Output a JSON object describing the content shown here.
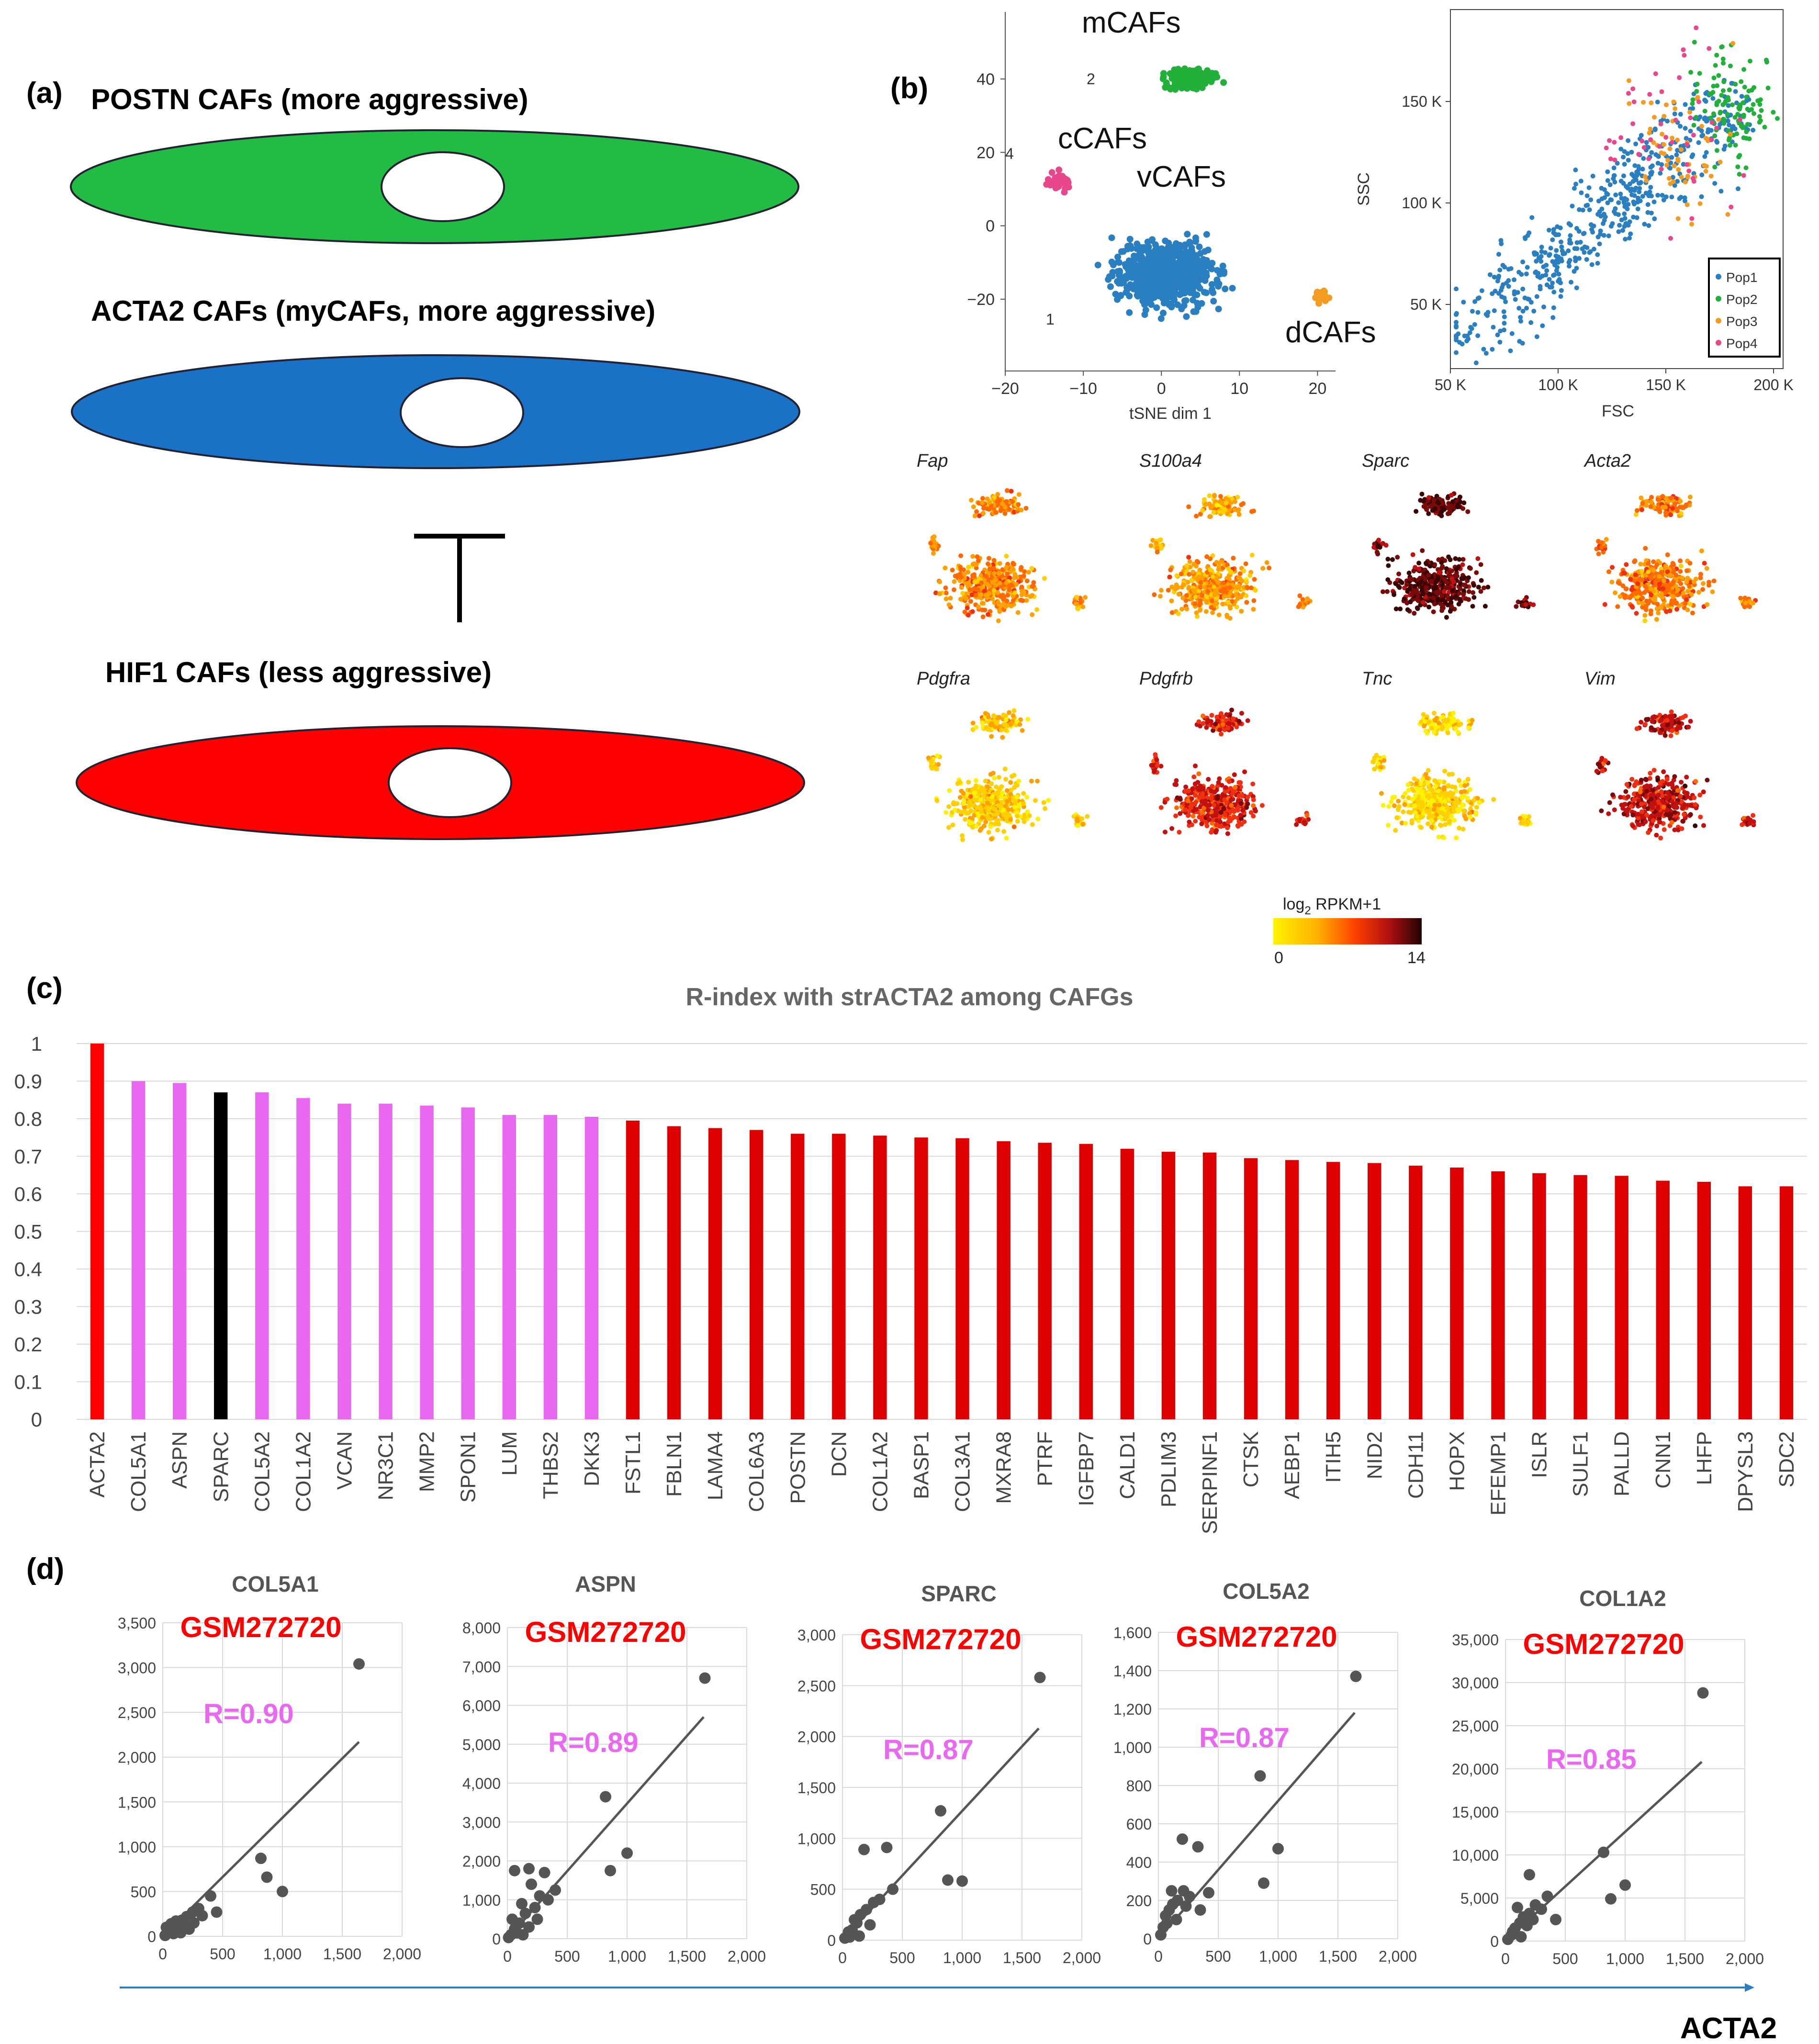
{
  "panel_a": {
    "label": "(a)",
    "cells": [
      {
        "title": "POSTN CAFs (more aggressive)",
        "color": "#22bb44"
      },
      {
        "title": "ACTA2 CAFs (myCAFs, more aggressive)",
        "color": "#1a72c7"
      },
      {
        "title": "HIF1 CAFs (less aggressive)",
        "color": "#ff0000"
      }
    ]
  },
  "panel_b": {
    "label": "(b)",
    "tsne": {
      "xlabel": "tSNE dim 1",
      "xticks": [
        -20,
        -10,
        0,
        10,
        20
      ],
      "yticks": [
        40,
        20,
        0,
        -20
      ],
      "clusters": [
        {
          "name": "mCAFs",
          "num": "2",
          "color": "#22b03a"
        },
        {
          "name": "cCAFs",
          "num": "4",
          "color": "#e8478b"
        },
        {
          "name": "vCAFs",
          "num": "1",
          "color": "#2a7fc0"
        },
        {
          "name": "dCAFs",
          "num": "",
          "color": "#f39c21"
        }
      ]
    },
    "fsc": {
      "xlabel": "FSC",
      "ylabel": "SSC",
      "xticks": [
        "50 K",
        "100 K",
        "150 K",
        "200 K"
      ],
      "yticks": [
        "150 K",
        "100 K",
        "50 K"
      ],
      "legend": [
        "Pop1",
        "Pop2",
        "Pop3",
        "Pop4"
      ],
      "legend_colors": [
        "#2a7fc0",
        "#22b03a",
        "#f39c21",
        "#e8478b"
      ]
    },
    "genes": [
      "Fap",
      "S100a4",
      "Sparc",
      "Acta2",
      "Pdgfra",
      "Pdgfrb",
      "Tnc",
      "Vim"
    ],
    "gene_levels": [
      0.35,
      0.3,
      0.92,
      0.4,
      0.15,
      0.62,
      0.12,
      0.7
    ],
    "colorbar": {
      "title": "log",
      "sub": "2",
      "suffix": " RPKM+1",
      "min": "0",
      "max": "14"
    }
  },
  "panel_c": {
    "label": "(c)"
  },
  "chart_data": [
    {
      "type": "bar",
      "title": "R-index with strACTA2 among CAFGs",
      "ylim": [
        0,
        1
      ],
      "yticks": [
        "0",
        "0.1",
        "0.2",
        "0.3",
        "0.4",
        "0.5",
        "0.6",
        "0.7",
        "0.8",
        "0.9",
        "1"
      ],
      "categories": [
        "ACTA2",
        "COL5A1",
        "ASPN",
        "SPARC",
        "COL5A2",
        "COL1A2",
        "VCAN",
        "NR3C1",
        "MMP2",
        "SPON1",
        "LUM",
        "THBS2",
        "DKK3",
        "FSTL1",
        "FBLN1",
        "LAMA4",
        "COL6A3",
        "POSTN",
        "DCN",
        "COL1A2",
        "BASP1",
        "COL3A1",
        "MXRA8",
        "PTRF",
        "IGFBP7",
        "CALD1",
        "PDLIM3",
        "SERPINF1",
        "CTSK",
        "AEBP1",
        "ITIH5",
        "NID2",
        "CDH11",
        "HOPX",
        "EFEMP1",
        "ISLR",
        "SULF1",
        "PALLD",
        "CNN1",
        "LHFP",
        "DPYSL3",
        "SDC2"
      ],
      "values": [
        1.0,
        0.9,
        0.895,
        0.87,
        0.87,
        0.855,
        0.84,
        0.84,
        0.835,
        0.83,
        0.81,
        0.81,
        0.805,
        0.795,
        0.78,
        0.775,
        0.77,
        0.76,
        0.76,
        0.755,
        0.75,
        0.748,
        0.74,
        0.736,
        0.733,
        0.72,
        0.712,
        0.71,
        0.695,
        0.69,
        0.685,
        0.682,
        0.675,
        0.67,
        0.66,
        0.655,
        0.65,
        0.648,
        0.635,
        0.632,
        0.62,
        0.62
      ],
      "colors": [
        "#ff0000",
        "#e868f0",
        "#e868f0",
        "#000000",
        "#e868f0",
        "#e868f0",
        "#e868f0",
        "#e868f0",
        "#e868f0",
        "#e868f0",
        "#e868f0",
        "#e868f0",
        "#e868f0",
        "#dd0000",
        "#dd0000",
        "#dd0000",
        "#dd0000",
        "#dd0000",
        "#dd0000",
        "#dd0000",
        "#dd0000",
        "#dd0000",
        "#dd0000",
        "#dd0000",
        "#dd0000",
        "#dd0000",
        "#dd0000",
        "#dd0000",
        "#dd0000",
        "#dd0000",
        "#dd0000",
        "#dd0000",
        "#dd0000",
        "#dd0000",
        "#dd0000",
        "#dd0000",
        "#dd0000",
        "#dd0000",
        "#dd0000",
        "#dd0000",
        "#dd0000",
        "#dd0000"
      ]
    },
    {
      "type": "scatter",
      "title": "COL5A1",
      "dataset": "GSM272720",
      "r_label": "R=0.90",
      "xlim": [
        0,
        2000
      ],
      "ylim": [
        0,
        3500
      ],
      "xticks": [
        "0",
        "500",
        "1,000",
        "1,500",
        "2,000"
      ],
      "yticks": [
        "0",
        "500",
        "1,000",
        "1,500",
        "2,000",
        "2,500",
        "3,000",
        "3,500"
      ],
      "points": [
        [
          1640,
          3040
        ],
        [
          820,
          870
        ],
        [
          870,
          660
        ],
        [
          1000,
          500
        ],
        [
          400,
          450
        ],
        [
          450,
          270
        ],
        [
          330,
          230
        ],
        [
          300,
          310
        ],
        [
          250,
          270
        ],
        [
          200,
          220
        ],
        [
          160,
          180
        ],
        [
          130,
          150
        ],
        [
          100,
          120
        ],
        [
          80,
          80
        ],
        [
          60,
          50
        ],
        [
          40,
          40
        ],
        [
          20,
          10
        ],
        [
          120,
          60
        ],
        [
          180,
          110
        ],
        [
          220,
          80
        ],
        [
          260,
          150
        ],
        [
          90,
          30
        ],
        [
          150,
          40
        ],
        [
          30,
          100
        ],
        [
          110,
          170
        ],
        [
          70,
          140
        ]
      ],
      "fit": [
        [
          0,
          0
        ],
        [
          1640,
          2170
        ]
      ]
    },
    {
      "type": "scatter",
      "title": "ASPN",
      "dataset": "GSM272720",
      "r_label": "R=0.89",
      "xlim": [
        0,
        2000
      ],
      "ylim": [
        0,
        8000
      ],
      "xticks": [
        "0",
        "500",
        "1,000",
        "1,500",
        "2,000"
      ],
      "yticks": [
        "0",
        "1,000",
        "2,000",
        "3,000",
        "4,000",
        "5,000",
        "6,000",
        "7,000",
        "8,000"
      ],
      "points": [
        [
          1650,
          6700
        ],
        [
          820,
          3650
        ],
        [
          1000,
          2200
        ],
        [
          860,
          1750
        ],
        [
          60,
          1750
        ],
        [
          180,
          1800
        ],
        [
          310,
          1700
        ],
        [
          200,
          1400
        ],
        [
          400,
          1250
        ],
        [
          270,
          1100
        ],
        [
          340,
          1000
        ],
        [
          230,
          800
        ],
        [
          150,
          650
        ],
        [
          100,
          400
        ],
        [
          60,
          250
        ],
        [
          30,
          100
        ],
        [
          10,
          30
        ],
        [
          120,
          900
        ],
        [
          80,
          150
        ],
        [
          40,
          500
        ],
        [
          180,
          300
        ],
        [
          250,
          500
        ],
        [
          130,
          100
        ]
      ],
      "fit": [
        [
          0,
          0
        ],
        [
          1640,
          5700
        ]
      ]
    },
    {
      "type": "scatter",
      "title": "SPARC",
      "dataset": "GSM272720",
      "r_label": "R=0.87",
      "xlim": [
        0,
        2000
      ],
      "ylim": [
        0,
        3000
      ],
      "xticks": [
        "0",
        "500",
        "1,000",
        "1,500",
        "2,000"
      ],
      "yticks": [
        "0",
        "500",
        "1,000",
        "1,500",
        "2,000",
        "2,500",
        "3,000"
      ],
      "points": [
        [
          1650,
          2580
        ],
        [
          820,
          1270
        ],
        [
          1000,
          580
        ],
        [
          880,
          590
        ],
        [
          180,
          890
        ],
        [
          370,
          910
        ],
        [
          420,
          500
        ],
        [
          310,
          400
        ],
        [
          260,
          370
        ],
        [
          200,
          300
        ],
        [
          150,
          250
        ],
        [
          120,
          170
        ],
        [
          80,
          100
        ],
        [
          50,
          80
        ],
        [
          20,
          20
        ],
        [
          100,
          200
        ],
        [
          60,
          30
        ],
        [
          230,
          150
        ],
        [
          140,
          40
        ]
      ],
      "fit": [
        [
          0,
          0
        ],
        [
          1640,
          2080
        ]
      ]
    },
    {
      "type": "scatter",
      "title": "COL5A2",
      "dataset": "GSM272720",
      "r_label": "R=0.87",
      "xlim": [
        0,
        2000
      ],
      "ylim": [
        0,
        1600
      ],
      "xticks": [
        "0",
        "500",
        "1,000",
        "1,500",
        "2,000"
      ],
      "yticks": [
        "0",
        "200",
        "400",
        "600",
        "800",
        "1,000",
        "1,200",
        "1,400",
        "1,600"
      ],
      "points": [
        [
          1650,
          1370
        ],
        [
          850,
          850
        ],
        [
          1000,
          470
        ],
        [
          880,
          290
        ],
        [
          200,
          520
        ],
        [
          330,
          480
        ],
        [
          420,
          240
        ],
        [
          350,
          150
        ],
        [
          260,
          220
        ],
        [
          210,
          250
        ],
        [
          160,
          200
        ],
        [
          120,
          180
        ],
        [
          90,
          150
        ],
        [
          70,
          80
        ],
        [
          40,
          60
        ],
        [
          20,
          20
        ],
        [
          110,
          250
        ],
        [
          230,
          170
        ],
        [
          150,
          100
        ],
        [
          60,
          120
        ]
      ],
      "fit": [
        [
          0,
          0
        ],
        [
          1640,
          1180
        ]
      ]
    },
    {
      "type": "scatter",
      "title": "COL1A2",
      "dataset": "GSM272720",
      "r_label": "R=0.85",
      "xlim": [
        0,
        2000
      ],
      "ylim": [
        0,
        35000
      ],
      "xticks": [
        "0",
        "500",
        "1,000",
        "1,500",
        "2,000"
      ],
      "yticks": [
        "0",
        "5,000",
        "10,000",
        "15,000",
        "20,000",
        "25,000",
        "30,000",
        "35,000"
      ],
      "points": [
        [
          1650,
          28800
        ],
        [
          820,
          10300
        ],
        [
          1000,
          6500
        ],
        [
          880,
          4900
        ],
        [
          200,
          7700
        ],
        [
          350,
          5200
        ],
        [
          420,
          2500
        ],
        [
          300,
          3700
        ],
        [
          250,
          4200
        ],
        [
          200,
          3200
        ],
        [
          150,
          2800
        ],
        [
          120,
          2100
        ],
        [
          80,
          1500
        ],
        [
          50,
          700
        ],
        [
          20,
          200
        ],
        [
          100,
          3900
        ],
        [
          60,
          1100
        ],
        [
          180,
          1800
        ],
        [
          230,
          2500
        ],
        [
          130,
          500
        ]
      ],
      "fit": [
        [
          0,
          0
        ],
        [
          1640,
          20800
        ]
      ]
    }
  ],
  "panel_d": {
    "label": "(d)",
    "axis_label": "ACTA2"
  }
}
